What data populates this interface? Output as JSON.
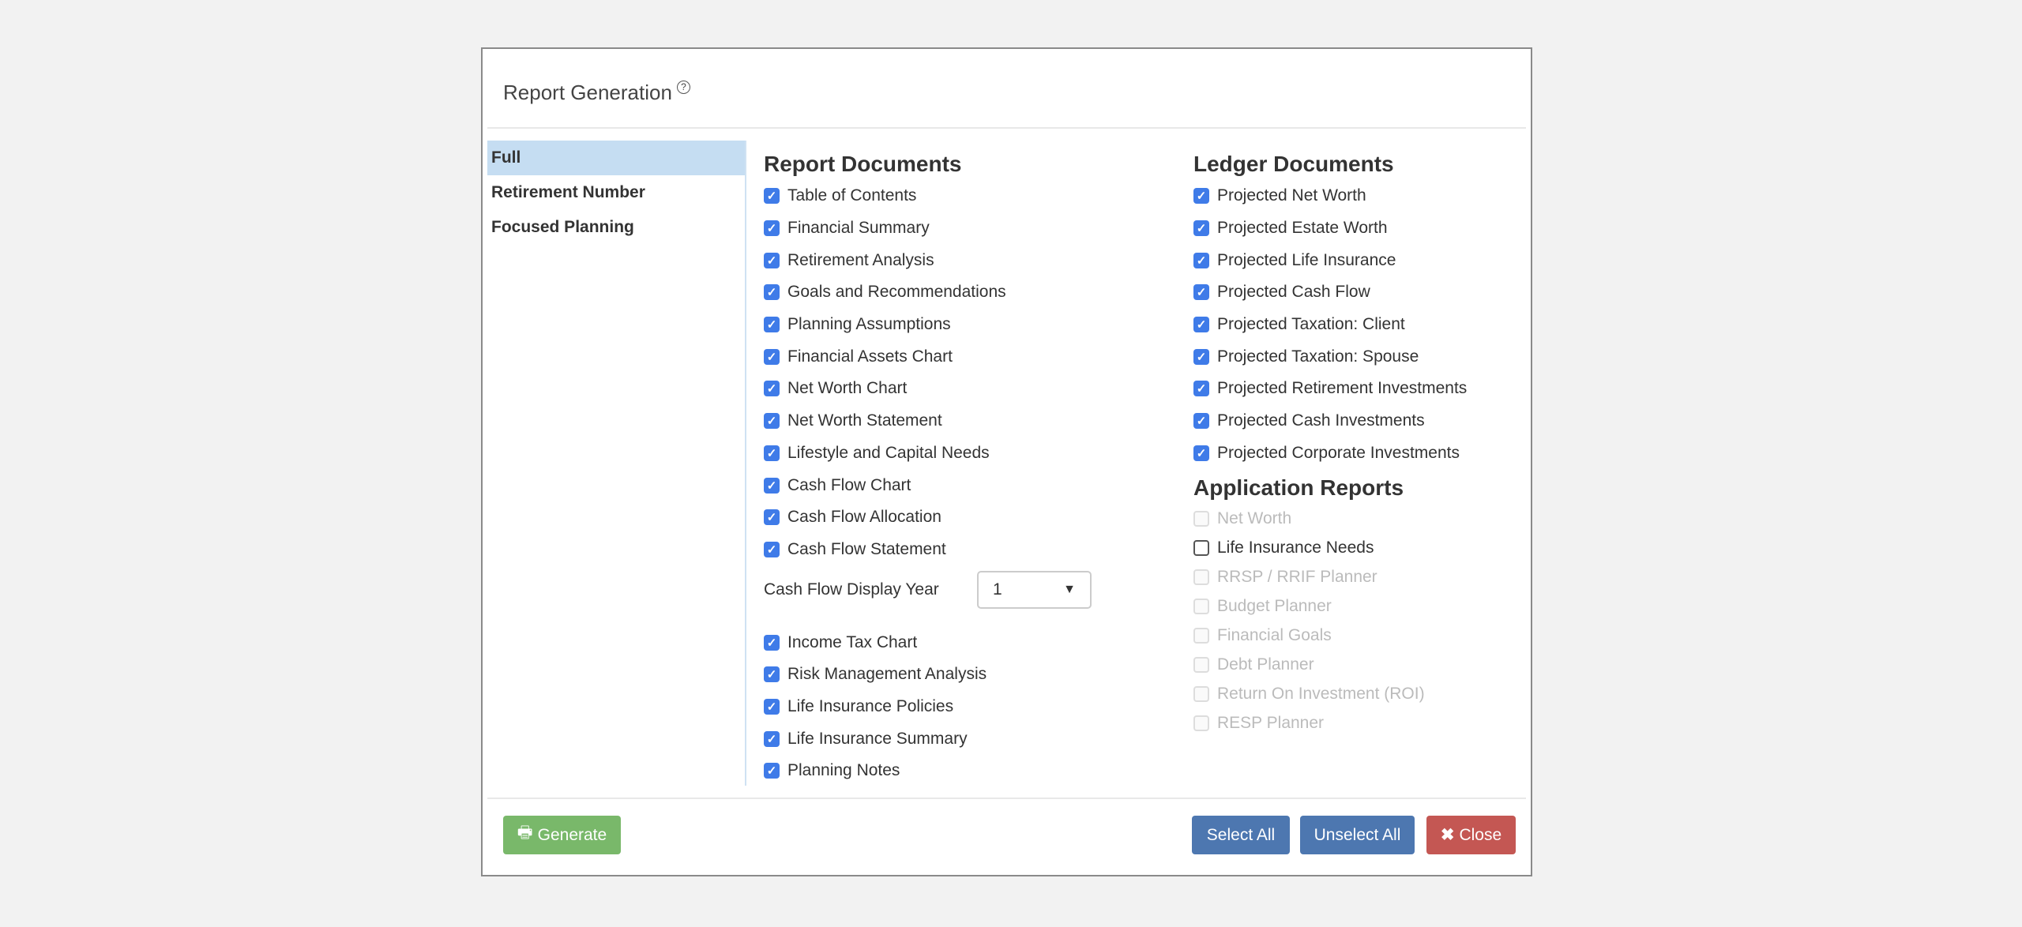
{
  "dialog": {
    "title": "Report Generation",
    "help_icon": "question-circle-icon"
  },
  "sidebar": {
    "items": [
      {
        "label": "Full",
        "selected": true
      },
      {
        "label": "Retirement Number",
        "selected": false
      },
      {
        "label": "Focused Planning",
        "selected": false
      }
    ]
  },
  "report_documents": {
    "heading": "Report Documents",
    "items_a": [
      {
        "label": "Table of Contents",
        "checked": true
      },
      {
        "label": "Financial Summary",
        "checked": true
      },
      {
        "label": "Retirement Analysis",
        "checked": true
      },
      {
        "label": "Goals and Recommendations",
        "checked": true
      },
      {
        "label": "Planning Assumptions",
        "checked": true
      },
      {
        "label": "Financial Assets Chart",
        "checked": true
      },
      {
        "label": "Net Worth Chart",
        "checked": true
      },
      {
        "label": "Net Worth Statement",
        "checked": true
      },
      {
        "label": "Lifestyle and Capital Needs",
        "checked": true
      },
      {
        "label": "Cash Flow Chart",
        "checked": true
      },
      {
        "label": "Cash Flow Allocation",
        "checked": true
      },
      {
        "label": "Cash Flow Statement",
        "checked": true
      }
    ],
    "display_year": {
      "label": "Cash Flow Display Year",
      "value": "1"
    },
    "items_b": [
      {
        "label": "Income Tax Chart",
        "checked": true
      },
      {
        "label": "Risk Management Analysis",
        "checked": true
      },
      {
        "label": "Life Insurance Policies",
        "checked": true
      },
      {
        "label": "Life Insurance Summary",
        "checked": true
      },
      {
        "label": "Planning Notes",
        "checked": true
      }
    ]
  },
  "ledger_documents": {
    "heading": "Ledger Documents",
    "items": [
      {
        "label": "Projected Net Worth",
        "checked": true
      },
      {
        "label": "Projected Estate Worth",
        "checked": true
      },
      {
        "label": "Projected Life Insurance",
        "checked": true
      },
      {
        "label": "Projected Cash Flow",
        "checked": true
      },
      {
        "label": "Projected Taxation: Client",
        "checked": true
      },
      {
        "label": "Projected Taxation: Spouse",
        "checked": true
      },
      {
        "label": "Projected Retirement Investments",
        "checked": true
      },
      {
        "label": "Projected Cash Investments",
        "checked": true
      },
      {
        "label": "Projected Corporate Investments",
        "checked": true
      }
    ]
  },
  "application_reports": {
    "heading": "Application Reports",
    "items": [
      {
        "label": "Net Worth",
        "checked": false,
        "disabled": true
      },
      {
        "label": "Life Insurance Needs",
        "checked": false,
        "disabled": false
      },
      {
        "label": "RRSP / RRIF Planner",
        "checked": false,
        "disabled": true
      },
      {
        "label": "Budget Planner",
        "checked": false,
        "disabled": true
      },
      {
        "label": "Financial Goals",
        "checked": false,
        "disabled": true
      },
      {
        "label": "Debt Planner",
        "checked": false,
        "disabled": true
      },
      {
        "label": "Return On Investment (ROI)",
        "checked": false,
        "disabled": true
      },
      {
        "label": "RESP Planner",
        "checked": false,
        "disabled": true
      }
    ]
  },
  "footer": {
    "generate": "Generate",
    "select_all": "Select All",
    "unselect_all": "Unselect All",
    "close": "Close"
  },
  "colors": {
    "generate": "#79b86a",
    "select": "#4d77b0",
    "close": "#c45753",
    "checkbox": "#3f7be8",
    "selected_tab": "#c5ddf2"
  }
}
